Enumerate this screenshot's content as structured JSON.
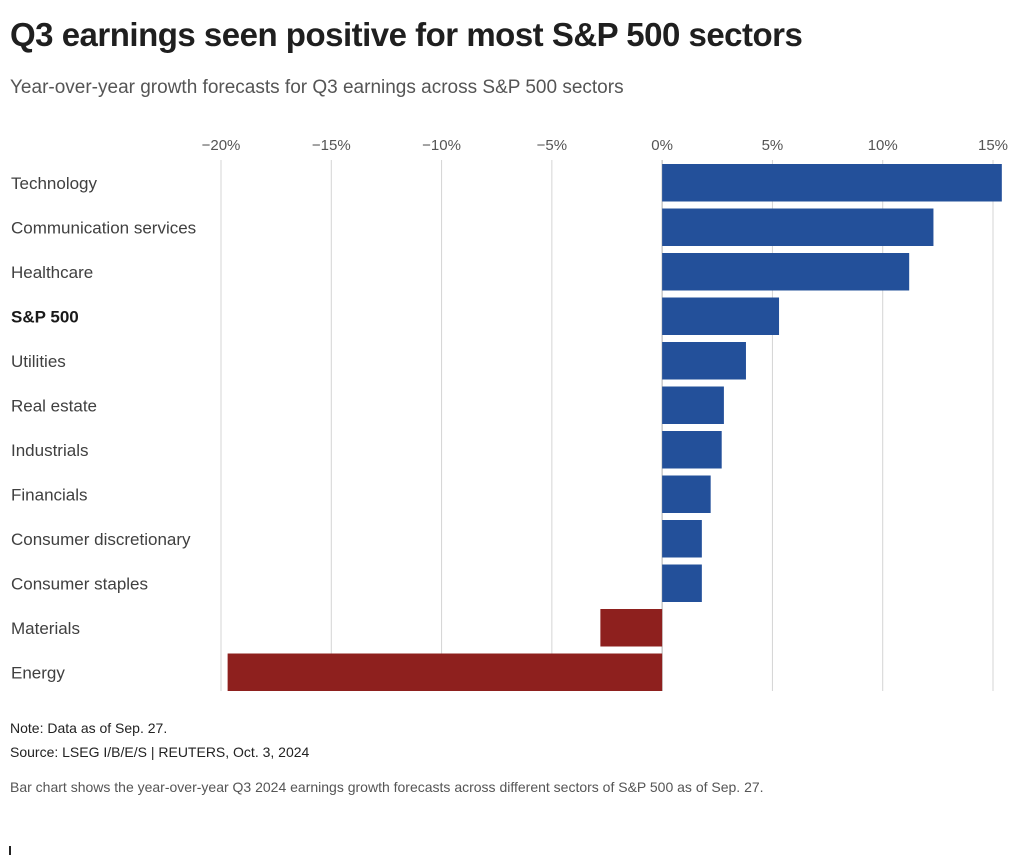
{
  "header": {
    "title": "Q3 earnings seen positive for most S&P 500 sectors",
    "subtitle": "Year-over-year growth forecasts for Q3 earnings across S&P 500 sectors"
  },
  "footer": {
    "note": "Note: Data as of Sep. 27.",
    "source": "Source: LSEG I/B/E/S | REUTERS, Oct. 3, 2024",
    "description": "Bar chart shows the year-over-year Q3 2024 earnings growth forecasts across different sectors of S&P 500 as of Sep. 27."
  },
  "colors": {
    "positive": "#23509a",
    "negative": "#8e201e"
  },
  "chart_data": {
    "type": "bar",
    "orientation": "horizontal",
    "title": "Q3 earnings seen positive for most S&P 500 sectors",
    "subtitle": "Year-over-year growth forecasts for Q3 earnings across S&P 500 sectors",
    "xlabel": "",
    "ylabel": "",
    "xlim": [
      -20,
      15.5
    ],
    "x_ticks": [
      -20,
      -15,
      -10,
      -5,
      0,
      5,
      10,
      15
    ],
    "x_tick_labels": [
      "−20%",
      "−15%",
      "−10%",
      "−5%",
      "0%",
      "5%",
      "10%",
      "15%"
    ],
    "grid": true,
    "categories": [
      "Technology",
      "Communication services",
      "Healthcare",
      "S&P 500",
      "Utilities",
      "Real estate",
      "Industrials",
      "Financials",
      "Consumer discretionary",
      "Consumer staples",
      "Materials",
      "Energy"
    ],
    "values": [
      15.4,
      12.3,
      11.2,
      5.3,
      3.8,
      2.8,
      2.7,
      2.2,
      1.8,
      1.8,
      -2.8,
      -19.7
    ],
    "highlight_category": "S&P 500"
  }
}
